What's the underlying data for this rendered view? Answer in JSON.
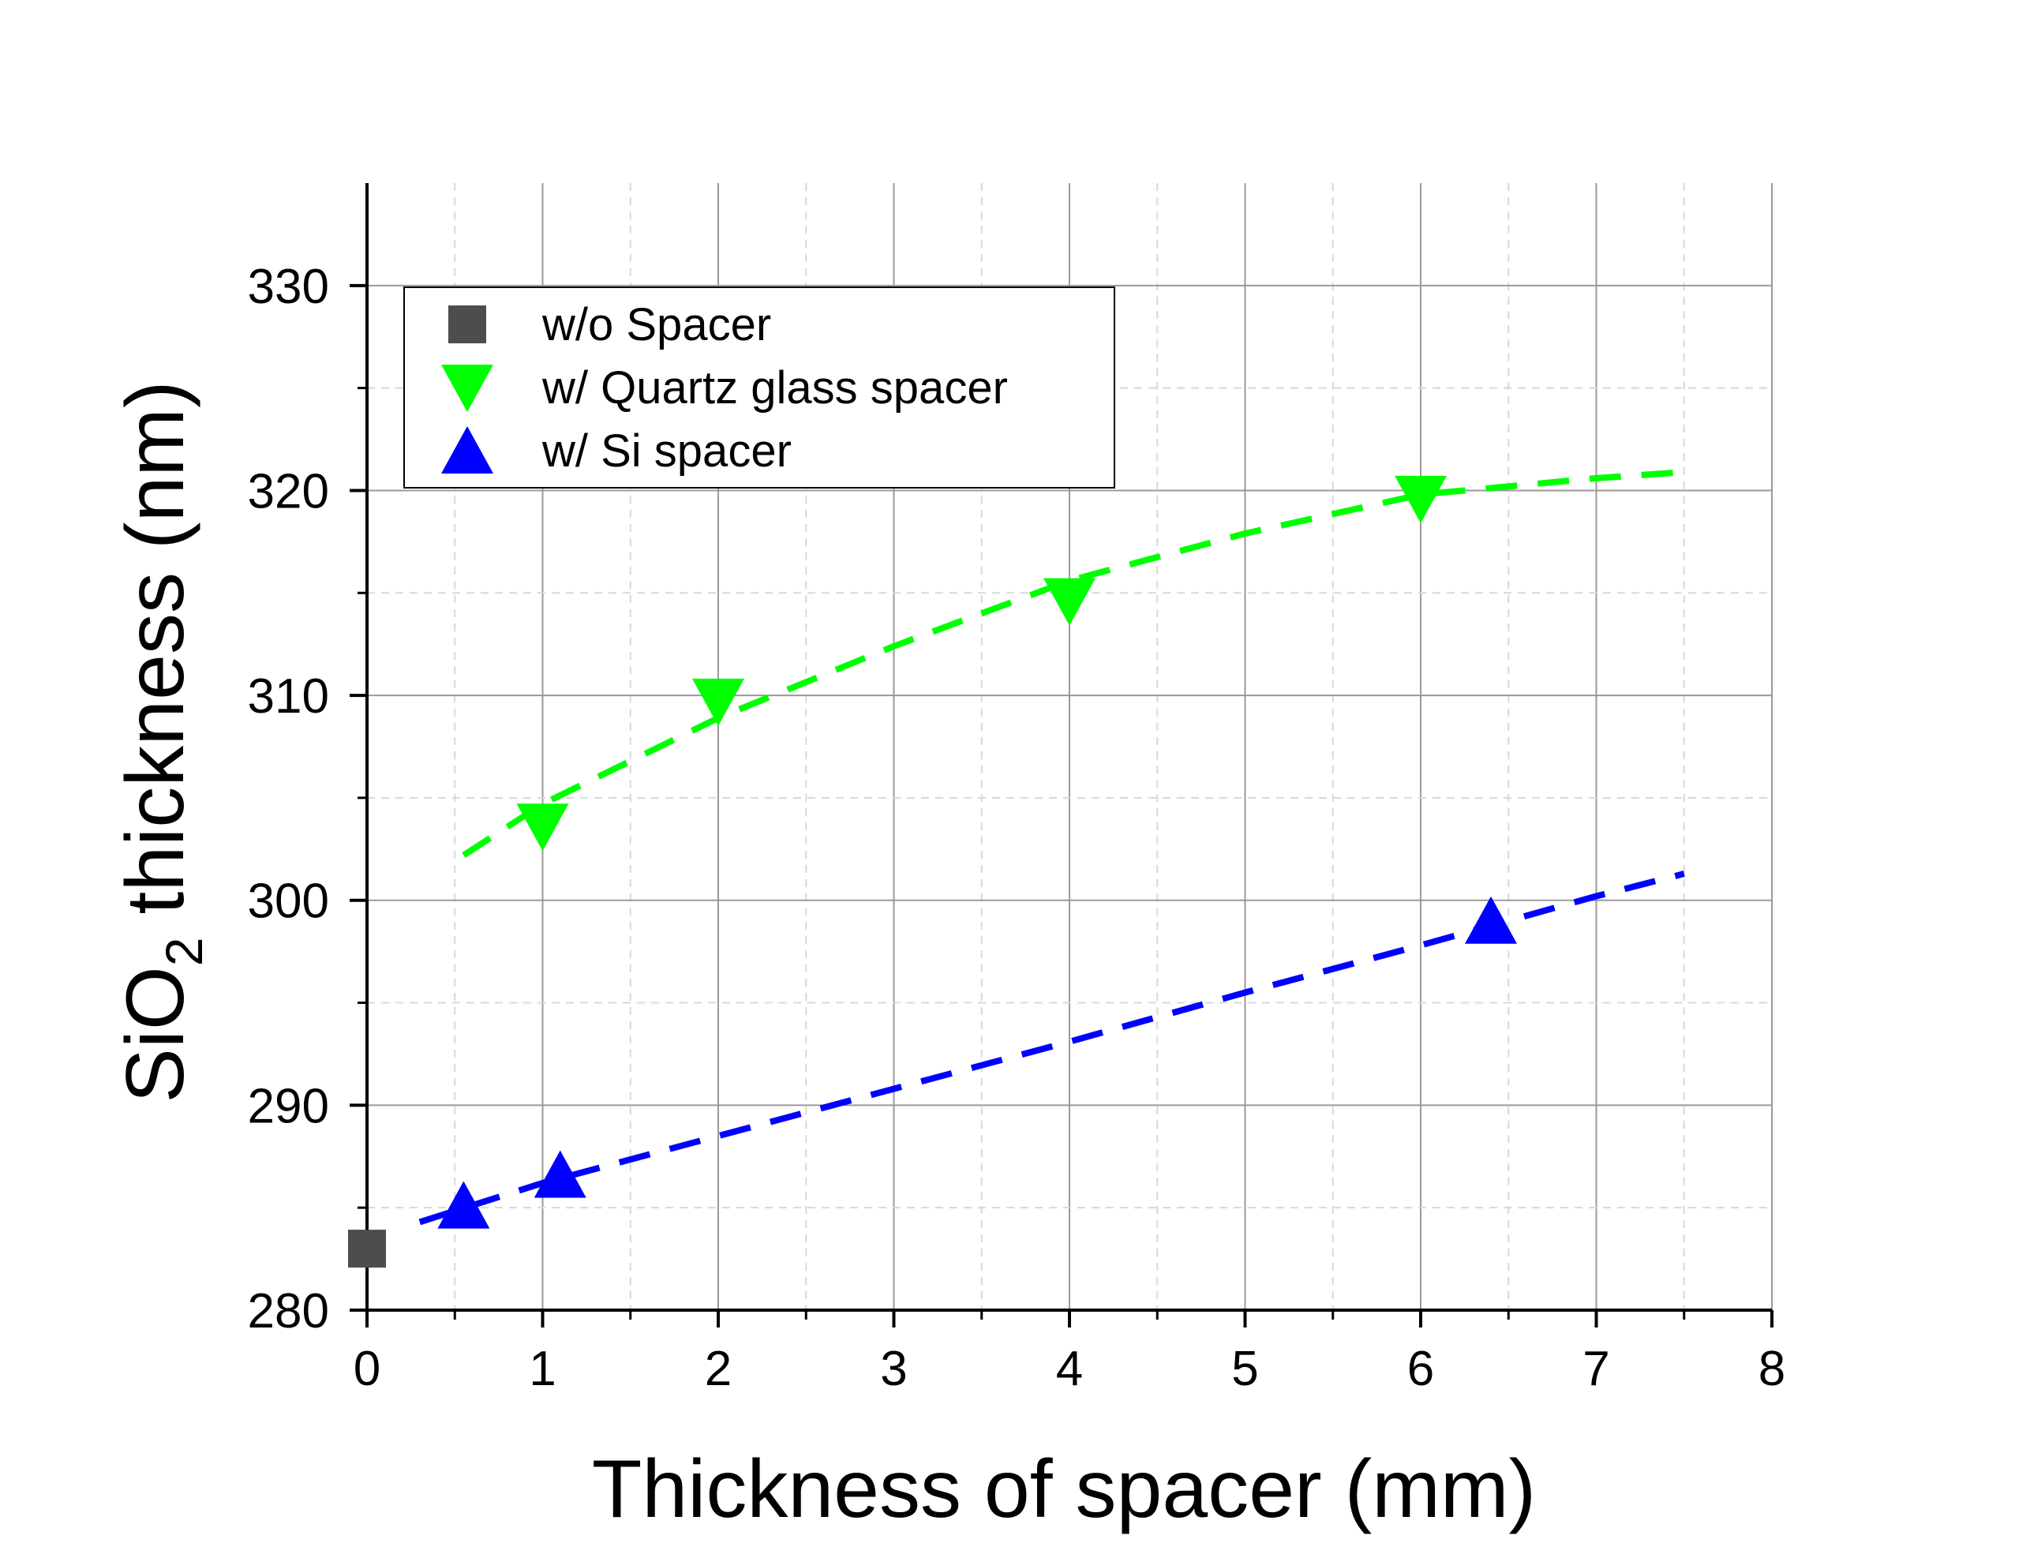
{
  "chart_data": {
    "type": "scatter",
    "xlabel": "Thickness of spacer (mm)",
    "ylabel": {
      "prefix": "SiO",
      "subscript": "2",
      "suffix": " thickness (nm)"
    },
    "xlim": [
      0,
      8
    ],
    "ylim": [
      280,
      335
    ],
    "xticks": [
      0,
      1,
      2,
      3,
      4,
      5,
      6,
      7,
      8
    ],
    "yticks": [
      280,
      290,
      300,
      310,
      320,
      330
    ],
    "grid": true,
    "legend_position": "top-left",
    "series": [
      {
        "name": "w/o Spacer",
        "marker": "square",
        "color": "#4d4d4d",
        "points": [
          [
            0,
            283
          ]
        ]
      },
      {
        "name": "w/ Quartz glass spacer",
        "marker": "triangle-down",
        "color": "#00ff00",
        "points": [
          [
            1,
            303.6
          ],
          [
            2,
            309.7
          ],
          [
            4,
            314.6
          ],
          [
            6,
            319.6
          ]
        ],
        "fit_line": [
          [
            0.55,
            302.2
          ],
          [
            1,
            304.7
          ],
          [
            2,
            308.9
          ],
          [
            3,
            312.4
          ],
          [
            4,
            315.6
          ],
          [
            5,
            317.9
          ],
          [
            6,
            319.8
          ],
          [
            7,
            320.6
          ],
          [
            7.5,
            320.9
          ]
        ]
      },
      {
        "name": "w/ Si spacer",
        "marker": "triangle-up",
        "color": "#0000ff",
        "points": [
          [
            0.55,
            285.1
          ],
          [
            1.1,
            286.6
          ],
          [
            6.4,
            299.0
          ]
        ],
        "fit_line": [
          [
            0.3,
            284.3
          ],
          [
            1,
            286.2
          ],
          [
            2,
            288.5
          ],
          [
            3,
            290.8
          ],
          [
            4,
            293.1
          ],
          [
            5,
            295.5
          ],
          [
            6,
            297.8
          ],
          [
            7,
            300.2
          ],
          [
            7.5,
            301.3
          ]
        ]
      }
    ]
  }
}
